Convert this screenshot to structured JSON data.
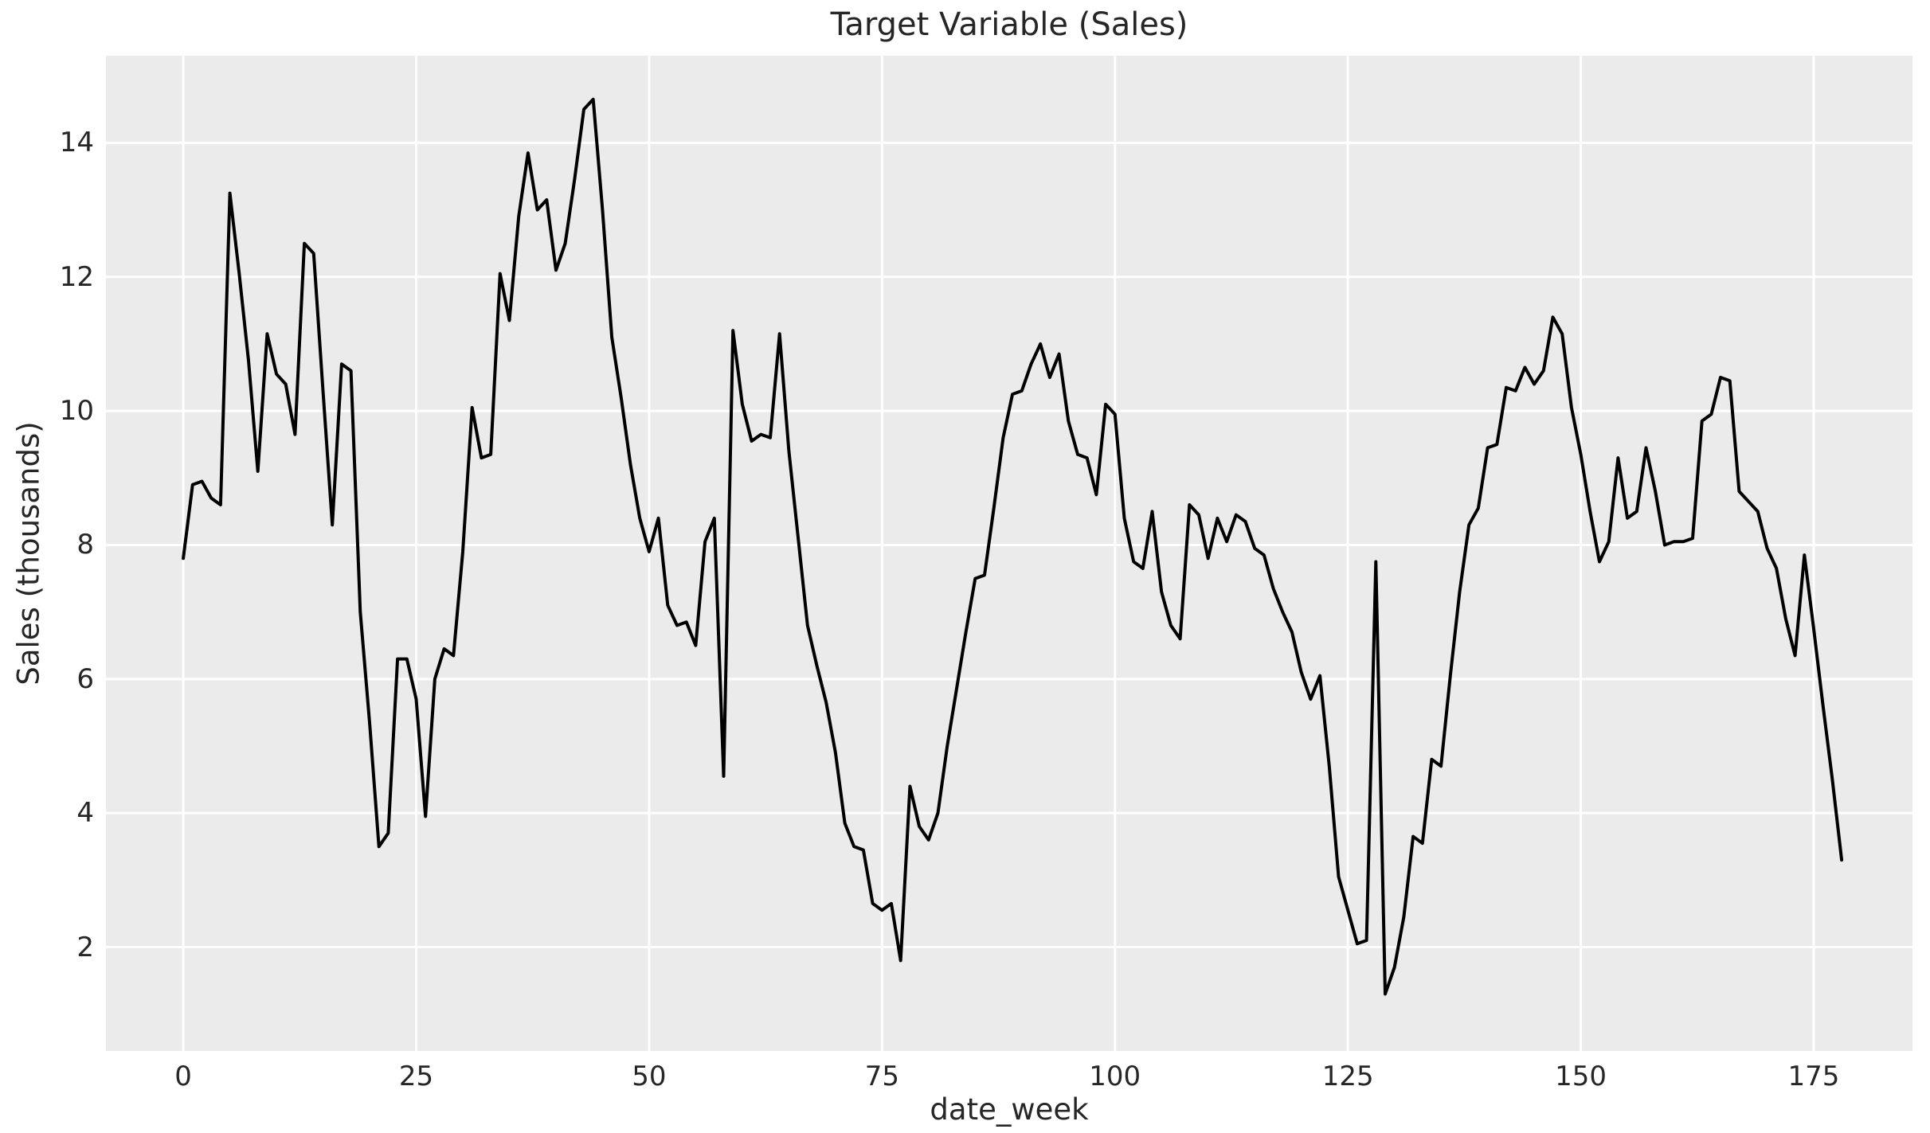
{
  "figure": {
    "background": "#ffffff",
    "plot_background": "#ebebeb",
    "grid_color": "#ffffff",
    "text_color": "#262626",
    "line_color": "#000000"
  },
  "chart_data": {
    "type": "line",
    "title": "Target Variable (Sales)",
    "xlabel": "date_week",
    "ylabel": "Sales (thousands)",
    "grid": true,
    "legend": false,
    "x_ticks": [
      0,
      25,
      50,
      75,
      100,
      125,
      150,
      175
    ],
    "y_ticks": [
      2,
      4,
      6,
      8,
      10,
      12,
      14
    ],
    "xlim": [
      -8.3,
      185.6
    ],
    "ylim": [
      0.45,
      15.3
    ],
    "series": [
      {
        "name": "Sales",
        "color": "#000000",
        "x": [
          0,
          1,
          2,
          3,
          4,
          5,
          6,
          7,
          8,
          9,
          10,
          11,
          12,
          13,
          14,
          15,
          16,
          17,
          18,
          19,
          20,
          21,
          22,
          23,
          24,
          25,
          26,
          27,
          28,
          29,
          30,
          31,
          32,
          33,
          34,
          35,
          36,
          37,
          38,
          39,
          40,
          41,
          42,
          43,
          44,
          45,
          46,
          47,
          48,
          49,
          50,
          51,
          52,
          53,
          54,
          55,
          56,
          57,
          58,
          59,
          60,
          61,
          62,
          63,
          64,
          65,
          66,
          67,
          68,
          69,
          70,
          71,
          72,
          73,
          74,
          75,
          76,
          77,
          78,
          79,
          80,
          81,
          82,
          83,
          84,
          85,
          86,
          87,
          88,
          89,
          90,
          91,
          92,
          93,
          94,
          95,
          96,
          97,
          98,
          99,
          100,
          101,
          102,
          103,
          104,
          105,
          106,
          107,
          108,
          109,
          110,
          111,
          112,
          113,
          114,
          115,
          116,
          117,
          118,
          119,
          120,
          121,
          122,
          123,
          124,
          125,
          126,
          127,
          128,
          129,
          130,
          131,
          132,
          133,
          134,
          135,
          136,
          137,
          138,
          139,
          140,
          141,
          142,
          143,
          144,
          145,
          146,
          147,
          148,
          149,
          150,
          151,
          152,
          153,
          154,
          155,
          156,
          157,
          158,
          159,
          160,
          161,
          162,
          163,
          164,
          165,
          166,
          167,
          168,
          169,
          170,
          171,
          172,
          173,
          174,
          175,
          176,
          177,
          178
        ],
        "y": [
          7.8,
          8.9,
          8.95,
          8.7,
          8.6,
          13.25,
          12.05,
          10.75,
          9.1,
          11.15,
          10.55,
          10.4,
          9.65,
          12.5,
          12.35,
          10.3,
          8.3,
          10.7,
          10.6,
          7.0,
          5.35,
          3.5,
          3.7,
          6.3,
          6.3,
          5.7,
          3.95,
          6.0,
          6.45,
          6.35,
          7.9,
          10.05,
          9.3,
          9.35,
          12.05,
          11.35,
          12.9,
          13.85,
          13.0,
          13.15,
          12.1,
          12.5,
          13.45,
          14.5,
          14.65,
          13.0,
          11.1,
          10.2,
          9.2,
          8.4,
          7.9,
          8.4,
          7.1,
          6.8,
          6.85,
          6.5,
          8.05,
          8.4,
          4.55,
          11.2,
          10.1,
          9.55,
          9.65,
          9.6,
          11.15,
          9.4,
          8.1,
          6.8,
          6.2,
          5.65,
          4.9,
          3.85,
          3.5,
          3.45,
          2.65,
          2.55,
          2.65,
          1.8,
          4.4,
          3.8,
          3.6,
          4.0,
          5.0,
          5.85,
          6.7,
          7.5,
          7.55,
          8.55,
          9.6,
          10.25,
          10.3,
          10.7,
          11.0,
          10.5,
          10.85,
          9.85,
          9.35,
          9.3,
          8.75,
          10.1,
          9.95,
          8.4,
          7.75,
          7.65,
          8.5,
          7.3,
          6.8,
          6.6,
          8.6,
          8.45,
          7.8,
          8.4,
          8.05,
          8.45,
          8.35,
          7.95,
          7.85,
          7.35,
          7.0,
          6.7,
          6.1,
          5.7,
          6.05,
          4.7,
          3.05,
          2.55,
          2.05,
          2.1,
          7.75,
          1.3,
          1.7,
          2.45,
          3.65,
          3.55,
          4.8,
          4.7,
          6.05,
          7.3,
          8.3,
          8.55,
          9.45,
          9.5,
          10.35,
          10.3,
          10.65,
          10.4,
          10.6,
          11.4,
          11.15,
          10.05,
          9.35,
          8.5,
          7.75,
          8.05,
          9.3,
          8.4,
          8.5,
          9.45,
          8.8,
          8.0,
          8.05,
          8.05,
          8.1,
          9.85,
          9.95,
          10.5,
          10.45,
          8.8,
          8.65,
          8.5,
          7.95,
          7.65,
          6.9,
          6.35,
          7.85,
          6.75,
          5.6,
          4.5,
          3.3
        ]
      }
    ]
  }
}
